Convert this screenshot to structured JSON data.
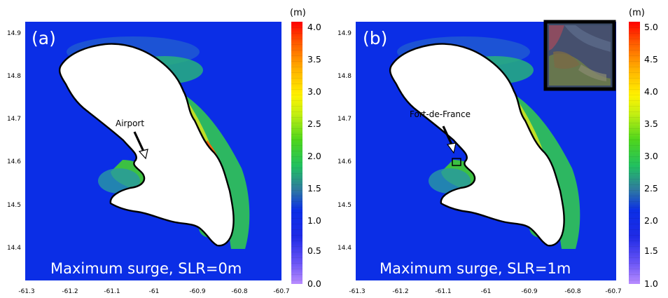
{
  "panels": [
    {
      "label": "(a)",
      "caption": "Maximum surge, SLR=0m",
      "annotation": "Airport",
      "y_ticks": [
        "14.9",
        "14.8",
        "14.7",
        "14.6",
        "14.5",
        "14.4"
      ],
      "x_ticks": [
        "-61.3",
        "-61.2",
        "-61.1",
        "-61",
        "-60.9",
        "-60.8",
        "-60.7"
      ],
      "colorbar": {
        "unit": "(m)",
        "ticks": [
          "4.0",
          "3.5",
          "3.0",
          "2.5",
          "2.0",
          "1.5",
          "1.0",
          "0.5",
          "0.0"
        ],
        "range": [
          0.0,
          4.0
        ]
      }
    },
    {
      "label": "(b)",
      "caption": "Maximum surge, SLR=1m",
      "annotation": "Fort-de-France",
      "y_ticks": [
        "14.9",
        "14.8",
        "14.7",
        "14.6",
        "14.5",
        "14.4"
      ],
      "x_ticks": [
        "-61.3",
        "-61.2",
        "-61.1",
        "-61",
        "-60.9",
        "-60.8",
        "-60.7"
      ],
      "colorbar": {
        "unit": "(m)",
        "ticks": [
          "5.0",
          "4.5",
          "4.0",
          "3.5",
          "3.0",
          "2.5",
          "2.0",
          "1.5",
          "1.0"
        ],
        "range": [
          1.0,
          5.0
        ]
      }
    }
  ],
  "colors": {
    "sea": "#0b2ee6",
    "land": "#ffffff",
    "coast": "#000000"
  },
  "icons": {
    "inset": "aerial-photo-inset",
    "arrow": "annotation-arrow"
  }
}
